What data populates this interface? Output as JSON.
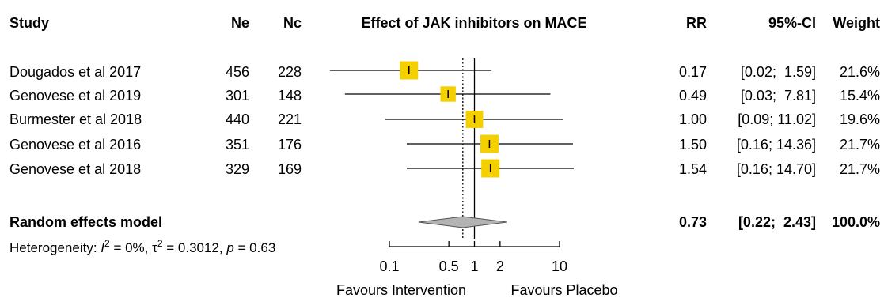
{
  "headers": {
    "study": "Study",
    "ne": "Ne",
    "nc": "Nc",
    "plot_title": "Effect of JAK inhibitors on MACE",
    "rr": "RR",
    "ci": "95%-CI",
    "weight": "Weight"
  },
  "studies": [
    {
      "name": "Dougados et al 2017",
      "ne": "456",
      "nc": "228",
      "rr_text": "0.17",
      "ci_text": "[0.02;  1.59]",
      "weight_text": "21.6%"
    },
    {
      "name": "Genovese et al 2019",
      "ne": "301",
      "nc": "148",
      "rr_text": "0.49",
      "ci_text": "[0.03;  7.81]",
      "weight_text": "15.4%"
    },
    {
      "name": "Burmester et al 2018",
      "ne": "440",
      "nc": "221",
      "rr_text": "1.00",
      "ci_text": "[0.09; 11.02]",
      "weight_text": "19.6%"
    },
    {
      "name": "Genovese et al 2016",
      "ne": "351",
      "nc": "176",
      "rr_text": "1.50",
      "ci_text": "[0.16; 14.36]",
      "weight_text": "21.7%"
    },
    {
      "name": "Genovese et al 2018",
      "ne": "329",
      "nc": "169",
      "rr_text": "1.54",
      "ci_text": "[0.16; 14.70]",
      "weight_text": "21.7%"
    }
  ],
  "summary": {
    "label": "Random effects model",
    "rr_text": "0.73",
    "ci_text": "[0.22;  2.43]",
    "weight_text": "100.0%"
  },
  "heterogeneity": {
    "prefix": "Heterogeneity: ",
    "i_symbol": "I",
    "i_sup": "2",
    "i_value": " = 0%, ",
    "tau_symbol": "τ",
    "tau_sup": "2",
    "tau_value": " = 0.3012, ",
    "p_symbol": "p",
    "p_value": " = 0.63"
  },
  "axis": {
    "ticks": [
      0.1,
      0.5,
      1,
      2,
      10
    ],
    "tick_labels": [
      "0.1",
      "0.5",
      "1",
      "2",
      "10"
    ],
    "left_label": "Favours Intervention",
    "right_label": "Favours Placebo"
  },
  "colors": {
    "square": "#f5d000",
    "diamond": "#b3b3b3",
    "line": "#000000"
  },
  "chart_data": {
    "type": "forest",
    "title": "Effect of JAK inhibitors on MACE",
    "scale": "log",
    "xlim": [
      0.1,
      10
    ],
    "reference_line": 1,
    "pooled_line": 0.73,
    "studies": [
      {
        "name": "Dougados et al 2017",
        "rr": 0.17,
        "lower": 0.02,
        "upper": 1.59,
        "weight": 21.6
      },
      {
        "name": "Genovese et al 2019",
        "rr": 0.49,
        "lower": 0.03,
        "upper": 7.81,
        "weight": 15.4
      },
      {
        "name": "Burmester et al 2018",
        "rr": 1.0,
        "lower": 0.09,
        "upper": 11.02,
        "weight": 19.6
      },
      {
        "name": "Genovese et al 2016",
        "rr": 1.5,
        "lower": 0.16,
        "upper": 14.36,
        "weight": 21.7
      },
      {
        "name": "Genovese et al 2018",
        "rr": 1.54,
        "lower": 0.16,
        "upper": 14.7,
        "weight": 21.7
      }
    ],
    "summary": {
      "name": "Random effects model",
      "rr": 0.73,
      "lower": 0.22,
      "upper": 2.43,
      "weight": 100.0
    }
  }
}
